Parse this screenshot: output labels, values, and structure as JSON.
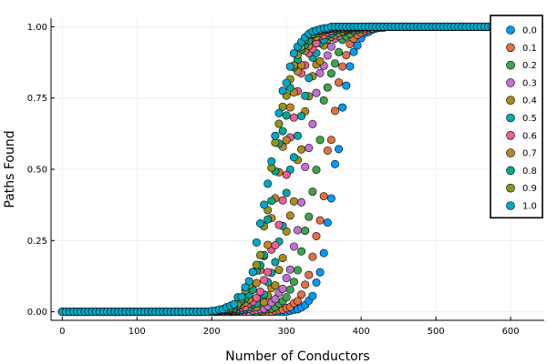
{
  "chart_data": {
    "type": "scatter",
    "title": "",
    "xlabel": "Number of Conductors",
    "ylabel": "Paths Found",
    "xlim": [
      -15,
      645
    ],
    "ylim": [
      -0.03,
      1.03
    ],
    "xticks": [
      0,
      100,
      200,
      300,
      400,
      500,
      600
    ],
    "yticks": [
      0.0,
      0.25,
      0.5,
      0.75,
      1.0
    ],
    "xtick_labels": [
      "0",
      "100",
      "200",
      "300",
      "400",
      "500",
      "600"
    ],
    "ytick_labels": [
      "0.00",
      "0.25",
      "0.50",
      "0.75",
      "1.00"
    ],
    "grid": true,
    "legend_position": "top-right",
    "x_step": 5,
    "x_max": 600,
    "series": [
      {
        "name": "0.0",
        "color": "#009AFA",
        "midpoint": 365,
        "scale": 11
      },
      {
        "name": "0.1",
        "color": "#E36F47",
        "midpoint": 353,
        "scale": 12
      },
      {
        "name": "0.2",
        "color": "#3EA44E",
        "midpoint": 338,
        "scale": 13
      },
      {
        "name": "0.3",
        "color": "#C271D2",
        "midpoint": 326,
        "scale": 13
      },
      {
        "name": "0.4",
        "color": "#AC8D18",
        "midpoint": 315,
        "scale": 14
      },
      {
        "name": "0.5",
        "color": "#00A9AD",
        "midpoint": 307,
        "scale": 14
      },
      {
        "name": "0.6",
        "color": "#ED5E93",
        "midpoint": 299,
        "scale": 14
      },
      {
        "name": "0.7",
        "color": "#C68225",
        "midpoint": 292,
        "scale": 14
      },
      {
        "name": "0.8",
        "color": "#00A98D",
        "midpoint": 287,
        "scale": 14
      },
      {
        "name": "0.9",
        "color": "#8E971D",
        "midpoint": 282,
        "scale": 14
      },
      {
        "name": "1.0",
        "color": "#00A8CB",
        "midpoint": 278,
        "scale": 14
      }
    ]
  }
}
